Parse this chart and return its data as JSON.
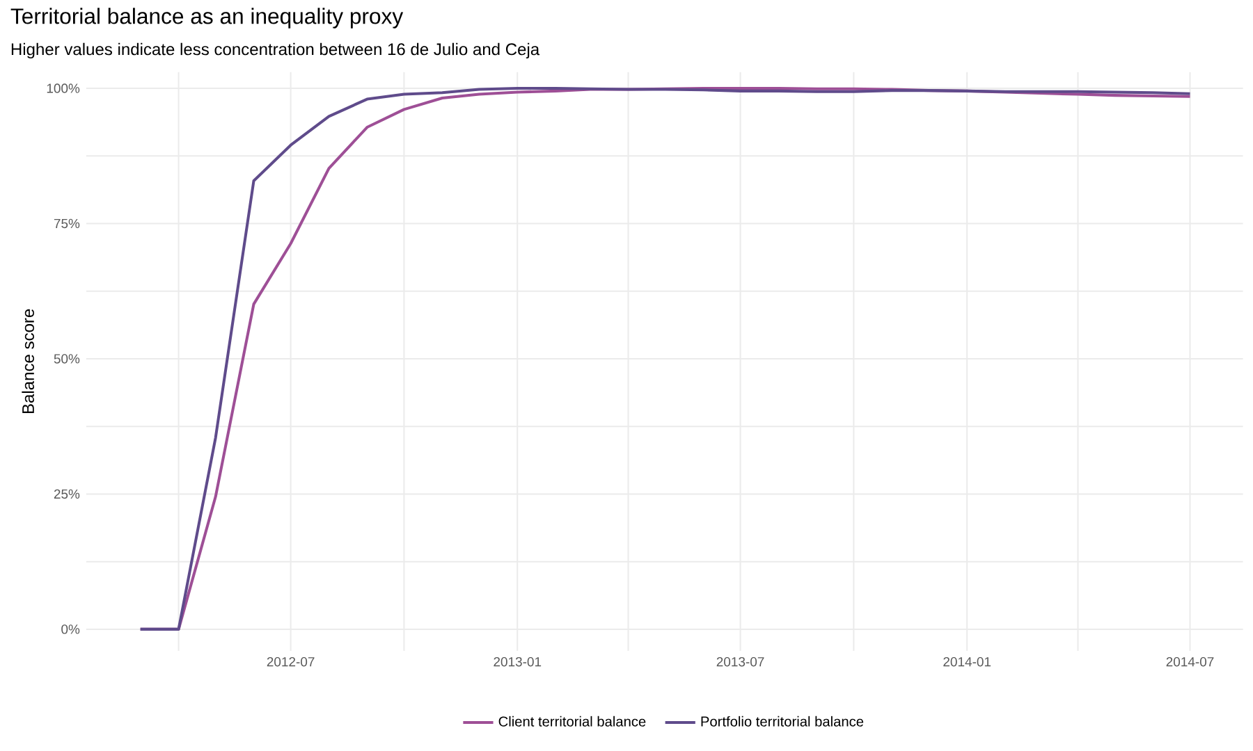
{
  "chart_data": {
    "type": "line",
    "title": "Territorial balance as an inequality proxy",
    "subtitle": "Higher values indicate less concentration between 16 de Julio and Ceja",
    "ylabel": "Balance score",
    "x": [
      "2012-03",
      "2012-04",
      "2012-05",
      "2012-06",
      "2012-07",
      "2012-08",
      "2012-09",
      "2012-10",
      "2012-11",
      "2012-12",
      "2013-01",
      "2013-02",
      "2013-03",
      "2013-04",
      "2013-05",
      "2013-06",
      "2013-07",
      "2013-08",
      "2013-09",
      "2013-10",
      "2013-11",
      "2013-12",
      "2014-01",
      "2014-02",
      "2014-03",
      "2014-04",
      "2014-05",
      "2014-06",
      "2014-07"
    ],
    "series": [
      {
        "name": "Client territorial balance",
        "color": "#9e4f96",
        "values": [
          0,
          0,
          24.5,
          60.1,
          71.3,
          85.2,
          92.8,
          96.1,
          98.2,
          98.9,
          99.3,
          99.5,
          99.8,
          99.8,
          99.9,
          100,
          100,
          100,
          99.9,
          99.9,
          99.8,
          99.6,
          99.5,
          99.3,
          99.1,
          98.9,
          98.7,
          98.6,
          98.5
        ]
      },
      {
        "name": "Portfolio territorial balance",
        "color": "#5f4b8b",
        "values": [
          0,
          0,
          35.4,
          82.9,
          89.5,
          94.8,
          98.0,
          98.9,
          99.2,
          99.8,
          100,
          100,
          99.9,
          99.8,
          99.8,
          99.7,
          99.5,
          99.5,
          99.4,
          99.4,
          99.6,
          99.6,
          99.5,
          99.4,
          99.4,
          99.4,
          99.3,
          99.2,
          99.0
        ]
      }
    ],
    "xlim": [
      "2012-01-17",
      "2014-08-13"
    ],
    "xticks": [
      {
        "value": "2012-04",
        "label": null
      },
      {
        "value": "2012-07",
        "label": "2012-07"
      },
      {
        "value": "2012-10",
        "label": null
      },
      {
        "value": "2013-01",
        "label": "2013-01"
      },
      {
        "value": "2013-04",
        "label": null
      },
      {
        "value": "2013-07",
        "label": "2013-07"
      },
      {
        "value": "2013-10",
        "label": null
      },
      {
        "value": "2014-01",
        "label": "2014-01"
      },
      {
        "value": "2014-04",
        "label": null
      },
      {
        "value": "2014-07",
        "label": "2014-07"
      }
    ],
    "ylim": [
      -4,
      103
    ],
    "yticks": [
      {
        "value": 0,
        "label": "0%"
      },
      {
        "value": 12.5,
        "label": null
      },
      {
        "value": 25,
        "label": "25%"
      },
      {
        "value": 37.5,
        "label": null
      },
      {
        "value": 50,
        "label": "50%"
      },
      {
        "value": 62.5,
        "label": null
      },
      {
        "value": 75,
        "label": "75%"
      },
      {
        "value": 87.5,
        "label": null
      },
      {
        "value": 100,
        "label": "100%"
      }
    ],
    "grid": true,
    "legend": "bottom",
    "marker": "none",
    "line_style": "solid"
  }
}
